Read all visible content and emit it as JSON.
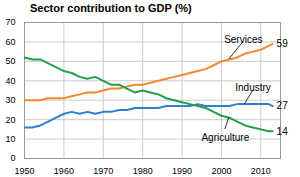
{
  "chart_data": {
    "type": "line",
    "title": "Sector contribution to GDP (%)",
    "x": [
      1950,
      1952,
      1954,
      1956,
      1958,
      1960,
      1962,
      1964,
      1966,
      1968,
      1970,
      1972,
      1974,
      1976,
      1978,
      1980,
      1982,
      1984,
      1986,
      1988,
      1990,
      1992,
      1994,
      1996,
      1998,
      2000,
      2002,
      2004,
      2006,
      2008,
      2010,
      2012,
      2013
    ],
    "series": [
      {
        "name": "Services",
        "color": "#f28a2e",
        "values": [
          30,
          30,
          30,
          31,
          31,
          31,
          32,
          33,
          34,
          34,
          35,
          36,
          36,
          37,
          38,
          38,
          39,
          40,
          41,
          42,
          43,
          44,
          45,
          46,
          48,
          50,
          51,
          52,
          54,
          55,
          56,
          58,
          59
        ]
      },
      {
        "name": "Industry",
        "color": "#2f7fd0",
        "values": [
          16,
          16,
          17,
          19,
          21,
          23,
          24,
          23,
          24,
          23,
          24,
          24,
          25,
          25,
          26,
          26,
          26,
          26,
          27,
          27,
          27,
          27,
          28,
          27,
          27,
          27,
          27,
          28,
          28,
          28,
          28,
          28,
          27
        ]
      },
      {
        "name": "Agriculture",
        "color": "#22a04a",
        "values": [
          52,
          51,
          51,
          49,
          47,
          45,
          44,
          42,
          41,
          42,
          40,
          38,
          38,
          36,
          34,
          35,
          34,
          33,
          31,
          30,
          29,
          28,
          27,
          26,
          24,
          22,
          21,
          19,
          17,
          16,
          15,
          14,
          14
        ]
      }
    ],
    "annotations": [
      {
        "text": "59",
        "x": 2013,
        "y": 59
      },
      {
        "text": "27",
        "x": 2013,
        "y": 27
      },
      {
        "text": "14",
        "x": 2013,
        "y": 14
      }
    ],
    "xlim": [
      1950,
      2015
    ],
    "xticks": [
      1950,
      1960,
      1970,
      1980,
      1990,
      2000,
      2010
    ],
    "ylim": [
      0,
      70
    ],
    "yticks": [
      0,
      10,
      20,
      30,
      40,
      50,
      60,
      70
    ],
    "grid": true
  }
}
